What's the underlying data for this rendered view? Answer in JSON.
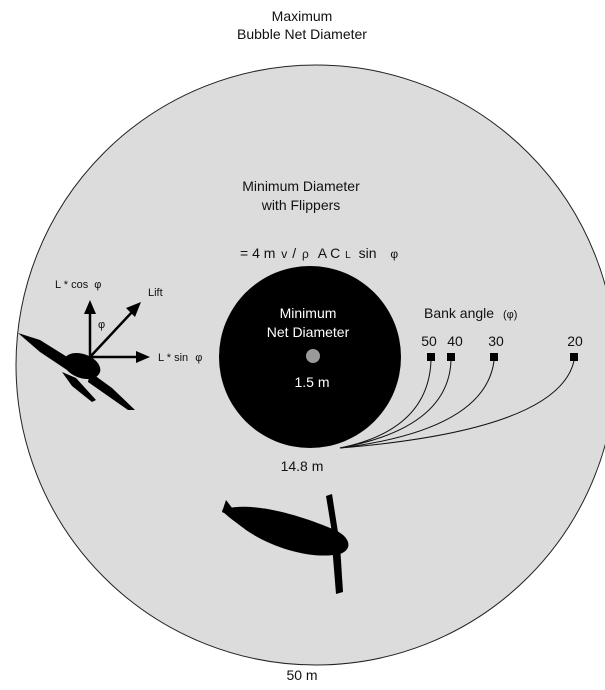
{
  "title": {
    "line1": "Maximum",
    "line2": "Bubble Net Diameter"
  },
  "min_flippers": {
    "line1": "Minimum Diameter",
    "line2": "with Flippers",
    "formula_prefix": "= 4 m",
    "formula_v": "v",
    "formula_slash": "/",
    "formula_rho": "ρ",
    "formula_a": "A C",
    "formula_l": "L",
    "formula_sin": "sin",
    "formula_phi": "φ"
  },
  "min_net": {
    "line1": "Minimum",
    "line2": "Net Diameter",
    "inner_value": "1.5 m",
    "outer_value": "14.8 m"
  },
  "bank_angle": {
    "label": "Bank angle",
    "symbol": "(φ)",
    "angles": [
      "50",
      "40",
      "30",
      "20"
    ]
  },
  "forces": {
    "cos_label": "L * cos",
    "cos_phi": "φ",
    "phi_label": "φ",
    "lift_label": "Lift",
    "sin_label": "L * sin",
    "sin_phi": "φ"
  },
  "max_value": "50 m",
  "colors": {
    "outer_fill": "#dcdcdc",
    "inner_fill": "#000000",
    "center_dot": "#9a9a9a",
    "ink": "#111111"
  },
  "icons": {
    "whale_top": "whale-silhouette-icon",
    "whale_banking": "banking-whale-icon"
  }
}
